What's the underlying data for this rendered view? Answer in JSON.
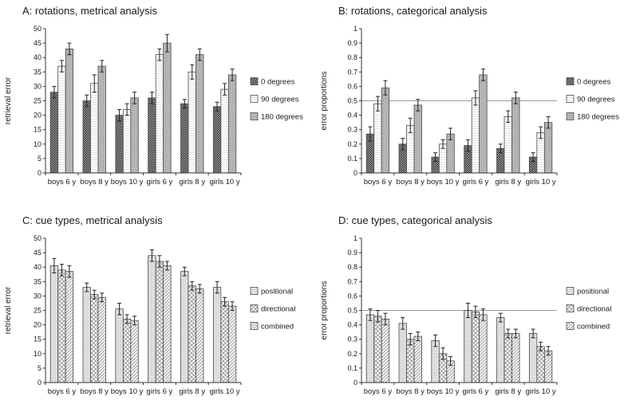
{
  "figure": {
    "background": "#ffffff",
    "text_color": "#1a1a1a",
    "axis_color": "#333333",
    "refline_color": "#9a9a9a"
  },
  "chart_data": [
    {
      "id": "a",
      "type": "bar",
      "title": "A: rotations, metrical analysis",
      "ylabel": "retrieval error",
      "ylim": [
        0,
        50
      ],
      "ytick_step": 5,
      "refline": null,
      "legend_position": "right",
      "grid": false,
      "categories": [
        "boys 6 y",
        "boys 8 y",
        "boys 10 y",
        "girls 6 y",
        "girls 8 y",
        "girls 10 y"
      ],
      "series": [
        {
          "name": "0 degrees",
          "pattern": "checker-dark",
          "values": [
            28,
            25,
            20,
            26,
            24,
            23
          ],
          "errors": [
            2,
            2,
            2,
            2,
            1.5,
            1.5
          ]
        },
        {
          "name": "90 degrees",
          "pattern": "hlines-white",
          "values": [
            37,
            31,
            22,
            41,
            35,
            29
          ],
          "errors": [
            2,
            3,
            2,
            2,
            2.5,
            2
          ]
        },
        {
          "name": "180 degrees",
          "pattern": "grid-gray",
          "values": [
            43,
            37,
            26,
            45,
            41,
            34
          ],
          "errors": [
            2,
            2,
            2,
            3,
            2,
            2
          ]
        }
      ]
    },
    {
      "id": "b",
      "type": "bar",
      "title": "B: rotations, categorical analysis",
      "ylabel": "error proportions",
      "ylim": [
        0,
        1
      ],
      "ytick_step": 0.1,
      "refline": 0.5,
      "legend_position": "right",
      "grid": false,
      "categories": [
        "boys 6 y",
        "boys 8 y",
        "boys 10 y",
        "girls 6 y",
        "girls 8 y",
        "girls 10 y"
      ],
      "series": [
        {
          "name": "0 degrees",
          "pattern": "checker-dark",
          "values": [
            0.27,
            0.2,
            0.11,
            0.19,
            0.17,
            0.11
          ],
          "errors": [
            0.05,
            0.04,
            0.03,
            0.04,
            0.03,
            0.03
          ]
        },
        {
          "name": "90 degrees",
          "pattern": "hlines-white",
          "values": [
            0.48,
            0.33,
            0.2,
            0.52,
            0.39,
            0.28
          ],
          "errors": [
            0.05,
            0.05,
            0.03,
            0.05,
            0.04,
            0.04
          ]
        },
        {
          "name": "180 degrees",
          "pattern": "grid-gray",
          "values": [
            0.59,
            0.47,
            0.27,
            0.68,
            0.52,
            0.35
          ],
          "errors": [
            0.05,
            0.04,
            0.04,
            0.04,
            0.04,
            0.04
          ]
        }
      ]
    },
    {
      "id": "c",
      "type": "bar",
      "title": "C: cue types, metrical analysis",
      "ylabel": "retrieval error",
      "ylim": [
        0,
        50
      ],
      "ytick_step": 5,
      "refline": null,
      "legend_position": "right",
      "grid": false,
      "categories": [
        "boys 6 y",
        "boys 8 y",
        "boys 10 y",
        "girls 6 y",
        "girls 8 y",
        "girls 10 y"
      ],
      "series": [
        {
          "name": "positional",
          "pattern": "light-dots",
          "values": [
            40.5,
            33,
            25.5,
            44,
            38.5,
            33
          ],
          "errors": [
            2.5,
            1.5,
            2,
            2,
            1.5,
            2
          ]
        },
        {
          "name": "directional",
          "pattern": "crosshatch",
          "values": [
            39,
            30.5,
            22,
            42,
            33.5,
            28
          ],
          "errors": [
            2,
            1.5,
            1.5,
            2,
            1.5,
            1.5
          ]
        },
        {
          "name": "combined",
          "pattern": "diag",
          "values": [
            38.5,
            29.5,
            21.5,
            40.5,
            32.5,
            26.5
          ],
          "errors": [
            2,
            1.5,
            1.5,
            1.5,
            1.5,
            1.5
          ]
        }
      ]
    },
    {
      "id": "d",
      "type": "bar",
      "title": "D: cue types, categorical analysis",
      "ylabel": "error proportions",
      "ylim": [
        0,
        1
      ],
      "ytick_step": 0.1,
      "refline": 0.5,
      "legend_position": "right",
      "grid": false,
      "categories": [
        "boys 6 y",
        "boys 8 y",
        "boys 10 y",
        "girls 6 y",
        "girls 8 y",
        "girls 10 y"
      ],
      "series": [
        {
          "name": "positional",
          "pattern": "light-dots",
          "values": [
            0.47,
            0.41,
            0.29,
            0.5,
            0.45,
            0.34
          ],
          "errors": [
            0.04,
            0.04,
            0.04,
            0.05,
            0.03,
            0.03
          ]
        },
        {
          "name": "directional",
          "pattern": "crosshatch",
          "values": [
            0.46,
            0.3,
            0.2,
            0.49,
            0.34,
            0.25
          ],
          "errors": [
            0.04,
            0.04,
            0.04,
            0.04,
            0.03,
            0.03
          ]
        },
        {
          "name": "combined",
          "pattern": "diag",
          "values": [
            0.44,
            0.32,
            0.15,
            0.47,
            0.34,
            0.22
          ],
          "errors": [
            0.04,
            0.03,
            0.03,
            0.04,
            0.03,
            0.03
          ]
        }
      ]
    }
  ]
}
